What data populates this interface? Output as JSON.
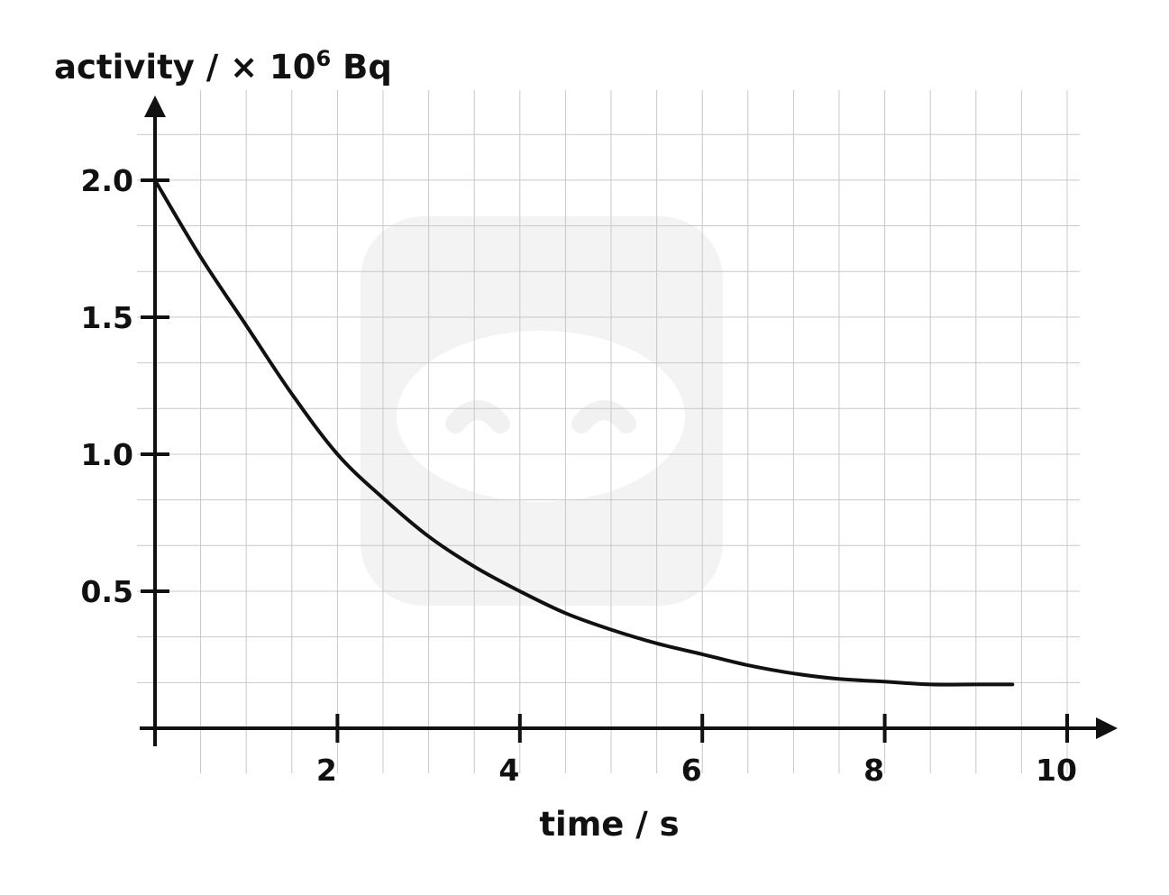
{
  "chart_data": {
    "type": "line",
    "title": "",
    "xlabel": "time / s",
    "ylabel": {
      "prefix": "activity / × 10",
      "exponent": "6",
      "unit": " Bq"
    },
    "xlim": [
      0,
      10.5
    ],
    "ylim": [
      0,
      2.35
    ],
    "x_ticks": [
      {
        "value": 2,
        "label": "2"
      },
      {
        "value": 4,
        "label": "4"
      },
      {
        "value": 6,
        "label": "6"
      },
      {
        "value": 8,
        "label": "8"
      },
      {
        "value": 10,
        "label": "10"
      }
    ],
    "y_ticks": [
      {
        "value": 0.5,
        "label": "0.5"
      },
      {
        "value": 1.0,
        "label": "1.0"
      },
      {
        "value": 1.5,
        "label": "1.5"
      },
      {
        "value": 2.0,
        "label": "2.0"
      }
    ],
    "grid": true,
    "grid_step": {
      "x": 0.5,
      "y": 0.1667
    },
    "series": [
      {
        "name": "",
        "x": [
          0,
          0.5,
          1,
          1.5,
          2,
          2.5,
          3,
          3.5,
          4,
          4.5,
          5,
          5.5,
          6,
          6.5,
          7,
          7.5,
          8,
          8.5,
          9,
          9.4
        ],
        "y": [
          2.0,
          1.72,
          1.47,
          1.22,
          1.0,
          0.84,
          0.7,
          0.59,
          0.5,
          0.42,
          0.36,
          0.31,
          0.27,
          0.23,
          0.2,
          0.18,
          0.17,
          0.16,
          0.16,
          0.16
        ]
      }
    ],
    "colors": {
      "line": "#111111",
      "axis": "#111111",
      "grid": "#c8c8c8",
      "watermark": "#f3f3f3"
    }
  }
}
